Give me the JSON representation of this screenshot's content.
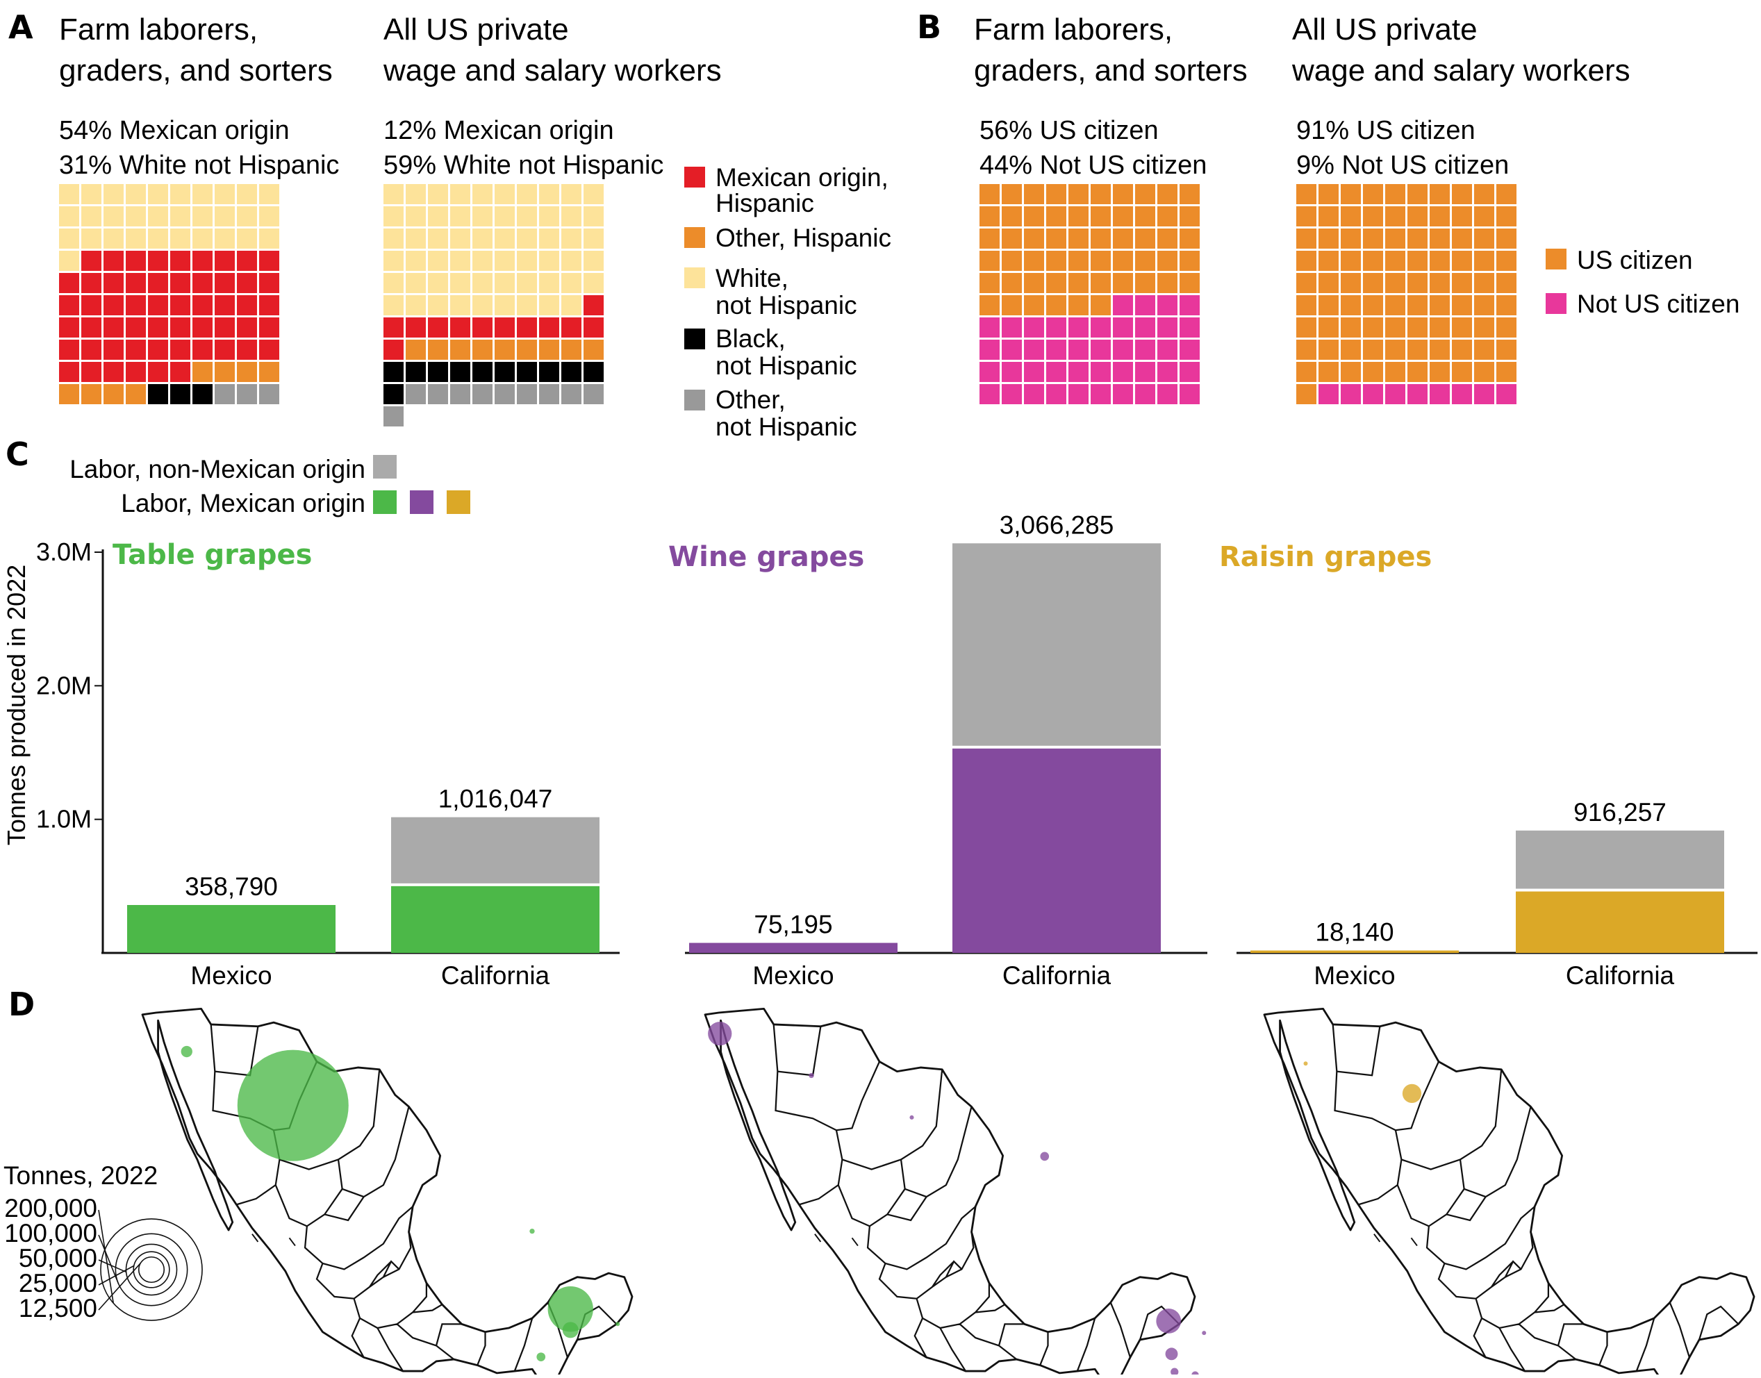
{
  "panel_labels": {
    "a": "A",
    "b": "B",
    "c": "C",
    "d": "D"
  },
  "chart_data": [
    {
      "type": "waffle",
      "panel": "A",
      "columns": [
        {
          "title_lines": [
            "Farm laborers,",
            "graders, and sorters"
          ],
          "stat_lines": [
            "54% Mexican origin",
            "31% White not Hispanic"
          ],
          "cells_top_to_bottom": [
            "white",
            "white",
            "white",
            "white",
            "white",
            "white",
            "white",
            "white",
            "white",
            "white",
            "white",
            "white",
            "white",
            "white",
            "white",
            "white",
            "white",
            "white",
            "white",
            "white",
            "white",
            "white",
            "white",
            "white",
            "white",
            "white",
            "white",
            "white",
            "white",
            "white",
            "white",
            "mexican",
            "mexican",
            "mexican",
            "mexican",
            "mexican",
            "mexican",
            "mexican",
            "mexican",
            "mexican",
            "mexican",
            "mexican",
            "mexican",
            "mexican",
            "mexican",
            "mexican",
            "mexican",
            "mexican",
            "mexican",
            "mexican",
            "mexican",
            "mexican",
            "mexican",
            "mexican",
            "mexican",
            "mexican",
            "mexican",
            "mexican",
            "mexican",
            "mexican",
            "mexican",
            "mexican",
            "mexican",
            "mexican",
            "mexican",
            "mexican",
            "mexican",
            "mexican",
            "mexican",
            "mexican",
            "mexican",
            "mexican",
            "mexican",
            "mexican",
            "mexican",
            "mexican",
            "mexican",
            "mexican",
            "mexican",
            "mexican",
            "mexican",
            "mexican",
            "mexican",
            "mexican",
            "mexican",
            "mexican",
            "other_hispanic",
            "other_hispanic",
            "other_hispanic",
            "other_hispanic",
            "other_hispanic",
            "other_hispanic",
            "other_hispanic",
            "other_hispanic",
            "black",
            "black",
            "black",
            "other",
            "other",
            "other"
          ]
        },
        {
          "title_lines": [
            "All US private",
            "wage and salary workers"
          ],
          "stat_lines": [
            "12% Mexican origin",
            "59% White not Hispanic"
          ],
          "cells_top_to_bottom": [
            "white",
            "white",
            "white",
            "white",
            "white",
            "white",
            "white",
            "white",
            "white",
            "white",
            "white",
            "white",
            "white",
            "white",
            "white",
            "white",
            "white",
            "white",
            "white",
            "white",
            "white",
            "white",
            "white",
            "white",
            "white",
            "white",
            "white",
            "white",
            "white",
            "white",
            "white",
            "white",
            "white",
            "white",
            "white",
            "white",
            "white",
            "white",
            "white",
            "white",
            "white",
            "white",
            "white",
            "white",
            "white",
            "white",
            "white",
            "white",
            "white",
            "white",
            "white",
            "white",
            "white",
            "white",
            "white",
            "white",
            "white",
            "white",
            "white",
            "mexican",
            "mexican",
            "mexican",
            "mexican",
            "mexican",
            "mexican",
            "mexican",
            "mexican",
            "mexican",
            "mexican",
            "mexican",
            "mexican",
            "other_hispanic",
            "other_hispanic",
            "other_hispanic",
            "other_hispanic",
            "other_hispanic",
            "other_hispanic",
            "other_hispanic",
            "other_hispanic",
            "other_hispanic",
            "black",
            "black",
            "black",
            "black",
            "black",
            "black",
            "black",
            "black",
            "black",
            "black",
            "black",
            "other",
            "other",
            "other",
            "other",
            "other",
            "other",
            "other",
            "other",
            "other",
            "other"
          ]
        }
      ],
      "legend": [
        {
          "key": "mexican",
          "lines": [
            "Mexican origin,",
            "Hispanic"
          ],
          "color": "#e41e26"
        },
        {
          "key": "other_hispanic",
          "lines": [
            "Other, Hispanic"
          ],
          "color": "#ec8c2a"
        },
        {
          "key": "white",
          "lines": [
            "White,",
            "not Hispanic"
          ],
          "color": "#fde39a"
        },
        {
          "key": "black",
          "lines": [
            "Black,",
            "not Hispanic"
          ],
          "color": "#000000"
        },
        {
          "key": "other",
          "lines": [
            "Other,",
            "not Hispanic"
          ],
          "color": "#999999"
        }
      ]
    },
    {
      "type": "waffle",
      "panel": "B",
      "columns": [
        {
          "title_lines": [
            "Farm laborers,",
            "graders, and sorters"
          ],
          "stat_lines": [
            "56% US citizen",
            "44% Not US citizen"
          ],
          "cells_top_to_bottom": [
            "citizen",
            "citizen",
            "citizen",
            "citizen",
            "citizen",
            "citizen",
            "citizen",
            "citizen",
            "citizen",
            "citizen",
            "citizen",
            "citizen",
            "citizen",
            "citizen",
            "citizen",
            "citizen",
            "citizen",
            "citizen",
            "citizen",
            "citizen",
            "citizen",
            "citizen",
            "citizen",
            "citizen",
            "citizen",
            "citizen",
            "citizen",
            "citizen",
            "citizen",
            "citizen",
            "citizen",
            "citizen",
            "citizen",
            "citizen",
            "citizen",
            "citizen",
            "citizen",
            "citizen",
            "citizen",
            "citizen",
            "citizen",
            "citizen",
            "citizen",
            "citizen",
            "citizen",
            "citizen",
            "citizen",
            "citizen",
            "citizen",
            "citizen",
            "citizen",
            "citizen",
            "citizen",
            "citizen",
            "citizen",
            "citizen",
            "noncitizen",
            "noncitizen",
            "noncitizen",
            "noncitizen",
            "noncitizen",
            "noncitizen",
            "noncitizen",
            "noncitizen",
            "noncitizen",
            "noncitizen",
            "noncitizen",
            "noncitizen",
            "noncitizen",
            "noncitizen",
            "noncitizen",
            "noncitizen",
            "noncitizen",
            "noncitizen",
            "noncitizen",
            "noncitizen",
            "noncitizen",
            "noncitizen",
            "noncitizen",
            "noncitizen",
            "noncitizen",
            "noncitizen",
            "noncitizen",
            "noncitizen",
            "noncitizen",
            "noncitizen",
            "noncitizen",
            "noncitizen",
            "noncitizen",
            "noncitizen",
            "noncitizen",
            "noncitizen",
            "noncitizen",
            "noncitizen",
            "noncitizen",
            "noncitizen",
            "noncitizen",
            "noncitizen",
            "noncitizen",
            "noncitizen"
          ]
        },
        {
          "title_lines": [
            "All US private",
            "wage and salary workers"
          ],
          "stat_lines": [
            "91% US citizen",
            "9% Not US citizen"
          ],
          "cells_top_to_bottom": [
            "citizen",
            "citizen",
            "citizen",
            "citizen",
            "citizen",
            "citizen",
            "citizen",
            "citizen",
            "citizen",
            "citizen",
            "citizen",
            "citizen",
            "citizen",
            "citizen",
            "citizen",
            "citizen",
            "citizen",
            "citizen",
            "citizen",
            "citizen",
            "citizen",
            "citizen",
            "citizen",
            "citizen",
            "citizen",
            "citizen",
            "citizen",
            "citizen",
            "citizen",
            "citizen",
            "citizen",
            "citizen",
            "citizen",
            "citizen",
            "citizen",
            "citizen",
            "citizen",
            "citizen",
            "citizen",
            "citizen",
            "citizen",
            "citizen",
            "citizen",
            "citizen",
            "citizen",
            "citizen",
            "citizen",
            "citizen",
            "citizen",
            "citizen",
            "citizen",
            "citizen",
            "citizen",
            "citizen",
            "citizen",
            "citizen",
            "citizen",
            "citizen",
            "citizen",
            "citizen",
            "citizen",
            "citizen",
            "citizen",
            "citizen",
            "citizen",
            "citizen",
            "citizen",
            "citizen",
            "citizen",
            "citizen",
            "citizen",
            "citizen",
            "citizen",
            "citizen",
            "citizen",
            "citizen",
            "citizen",
            "citizen",
            "citizen",
            "citizen",
            "citizen",
            "citizen",
            "citizen",
            "citizen",
            "citizen",
            "citizen",
            "citizen",
            "citizen",
            "citizen",
            "citizen",
            "citizen",
            "noncitizen",
            "noncitizen",
            "noncitizen",
            "noncitizen",
            "noncitizen",
            "noncitizen",
            "noncitizen",
            "noncitizen",
            "noncitizen"
          ]
        }
      ],
      "legend": [
        {
          "key": "citizen",
          "lines": [
            "US citizen"
          ],
          "color": "#ec8c2a"
        },
        {
          "key": "noncitizen",
          "lines": [
            "Not US citizen"
          ],
          "color": "#e8379b"
        }
      ]
    },
    {
      "type": "bar",
      "panel": "C",
      "stacked": true,
      "legend": {
        "non_mexican_label": "Labor, non-Mexican origin",
        "mexican_label": "Labor, Mexican origin",
        "non_mexican_color": "#aaaaaa",
        "mexican_colors": [
          "#4cb848",
          "#844a9e",
          "#dba827"
        ]
      },
      "ylabel": "Tonnes produced in 2022",
      "yticks": [
        {
          "value": 1000000,
          "label": "1.0M"
        },
        {
          "value": 2000000,
          "label": "2.0M"
        },
        {
          "value": 3000000,
          "label": "3.0M"
        }
      ],
      "ylim": [
        0,
        3000000
      ],
      "panels": [
        {
          "title": "Table grapes",
          "color": "#4cb848",
          "categories": [
            "Mexico",
            "California"
          ],
          "totals": [
            358790,
            1016047
          ],
          "total_labels": [
            "358,790",
            "1,016,047"
          ],
          "mexican_origin_labor": [
            358790,
            500000
          ],
          "non_mexican_origin_labor": [
            0,
            516047
          ]
        },
        {
          "title": "Wine grapes",
          "color": "#844a9e",
          "categories": [
            "Mexico",
            "California"
          ],
          "totals": [
            75195,
            3066285
          ],
          "total_labels": [
            "75,195",
            "3,066,285"
          ],
          "mexican_origin_labor": [
            75195,
            1530000
          ],
          "non_mexican_origin_labor": [
            0,
            1536285
          ]
        },
        {
          "title": "Raisin grapes",
          "color": "#dba827",
          "categories": [
            "Mexico",
            "California"
          ],
          "totals": [
            18140,
            916257
          ],
          "total_labels": [
            "18,140",
            "916,257"
          ],
          "mexican_origin_labor": [
            18140,
            460000
          ],
          "non_mexican_origin_labor": [
            0,
            456257
          ]
        }
      ]
    },
    {
      "type": "bubble_map",
      "panel": "D",
      "size_legend_title": "Tonnes, 2022",
      "size_legend": [
        {
          "value": 200000,
          "label": "200,000"
        },
        {
          "value": 100000,
          "label": "100,000"
        },
        {
          "value": 50000,
          "label": "50,000"
        },
        {
          "value": 25000,
          "label": "25,000"
        },
        {
          "value": 12500,
          "label": "12,500"
        }
      ],
      "maps": [
        {
          "crop": "Table grapes",
          "color": "#4cb848",
          "sites": [
            {
              "lon": -112.0,
              "lat": 29.6,
              "tonnes": 240000
            },
            {
              "lon": -115.6,
              "lat": 31.4,
              "tonnes": 2500
            },
            {
              "lon": -103.9,
              "lat": 25.4,
              "tonnes": 500
            },
            {
              "lon": -102.6,
              "lat": 22.8,
              "tonnes": 40000
            },
            {
              "lon": -102.6,
              "lat": 22.1,
              "tonnes": 5000
            },
            {
              "lon": -101.0,
              "lat": 22.3,
              "tonnes": 300
            },
            {
              "lon": -103.6,
              "lat": 21.2,
              "tonnes": 1500
            },
            {
              "lon": -99.4,
              "lat": 19.6,
              "tonnes": 100
            }
          ]
        },
        {
          "crop": "Wine grapes",
          "color": "#844a9e",
          "sites": [
            {
              "lon": -116.6,
              "lat": 32.0,
              "tonnes": 11000
            },
            {
              "lon": -113.5,
              "lat": 30.6,
              "tonnes": 500
            },
            {
              "lon": -110.1,
              "lat": 29.2,
              "tonnes": 350
            },
            {
              "lon": -105.6,
              "lat": 27.9,
              "tonnes": 1500
            },
            {
              "lon": -101.4,
              "lat": 22.4,
              "tonnes": 12000
            },
            {
              "lon": -101.3,
              "lat": 21.3,
              "tonnes": 3000
            },
            {
              "lon": -100.2,
              "lat": 22.0,
              "tonnes": 300
            },
            {
              "lon": -101.2,
              "lat": 20.7,
              "tonnes": 1200
            },
            {
              "lon": -100.5,
              "lat": 20.6,
              "tonnes": 1000
            }
          ]
        },
        {
          "crop": "Raisin grapes",
          "color": "#dba827",
          "sites": [
            {
              "lon": -112.1,
              "lat": 30.0,
              "tonnes": 7000
            },
            {
              "lon": -115.7,
              "lat": 31.0,
              "tonnes": 150
            }
          ]
        }
      ]
    }
  ]
}
